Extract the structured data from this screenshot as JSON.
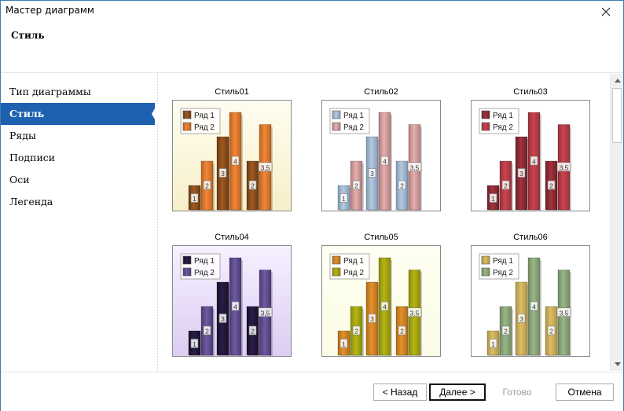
{
  "window": {
    "title": "Мастер диаграмм"
  },
  "header": {
    "title": "Стиль"
  },
  "sidebar": {
    "items": [
      {
        "label": "Тип диаграммы",
        "active": false
      },
      {
        "label": "Стиль",
        "active": true
      },
      {
        "label": "Ряды",
        "active": false
      },
      {
        "label": "Подписи",
        "active": false
      },
      {
        "label": "Оси",
        "active": false
      },
      {
        "label": "Легенда",
        "active": false
      }
    ]
  },
  "styles": [
    {
      "name": "Стиль01",
      "bg": [
        "#fffdf0",
        "#f7efc9"
      ],
      "border": "#8a8a8a",
      "c1": [
        "#a05a22",
        "#6b3a12"
      ],
      "c2": [
        "#f0883a",
        "#c0621c"
      ]
    },
    {
      "name": "Стиль02",
      "bg": [
        "#ffffff",
        "#ffffff"
      ],
      "border": "#8a8a8a",
      "c1": [
        "#b7c9dd",
        "#7f9bb9"
      ],
      "c2": [
        "#e2b1b1",
        "#b77c7c"
      ]
    },
    {
      "name": "Стиль03",
      "bg": [
        "#ffffff",
        "#ffffff"
      ],
      "border": "#8a8a8a",
      "c1": [
        "#a0343e",
        "#6e1f27"
      ],
      "c2": [
        "#c9454e",
        "#99303a"
      ]
    },
    {
      "name": "Стиль04",
      "bg": [
        "#f6f0ff",
        "#ddcdf2"
      ],
      "border": "#8a8a8a",
      "c1": [
        "#2b1d4a",
        "#161027"
      ],
      "c2": [
        "#6f5aa0",
        "#4a3a75"
      ]
    },
    {
      "name": "Стиль05",
      "bg": [
        "#fffff2",
        "#fbfbe6"
      ],
      "border": "#8a8a8a",
      "c1": [
        "#e0922e",
        "#b46c16"
      ],
      "c2": [
        "#b5b514",
        "#8b8b0a"
      ]
    },
    {
      "name": "Стиль06",
      "bg": [
        "#ffffff",
        "#ffffff"
      ],
      "border": "#8a8a8a",
      "c1": [
        "#d9bd6a",
        "#b2963f"
      ],
      "c2": [
        "#9bb58a",
        "#728e5f"
      ]
    }
  ],
  "legend": {
    "series1": "Ряд 1",
    "series2": "Ряд 2"
  },
  "bars": {
    "series1": [
      1,
      3,
      2
    ],
    "series2": [
      2,
      4,
      3.5
    ],
    "labels": [
      "1",
      "2",
      "3",
      "4",
      "2",
      "3,5"
    ],
    "max": 4
  },
  "footer": {
    "back": "< Назад",
    "next": "Далее >",
    "finish": "Готово",
    "cancel": "Отмена"
  }
}
